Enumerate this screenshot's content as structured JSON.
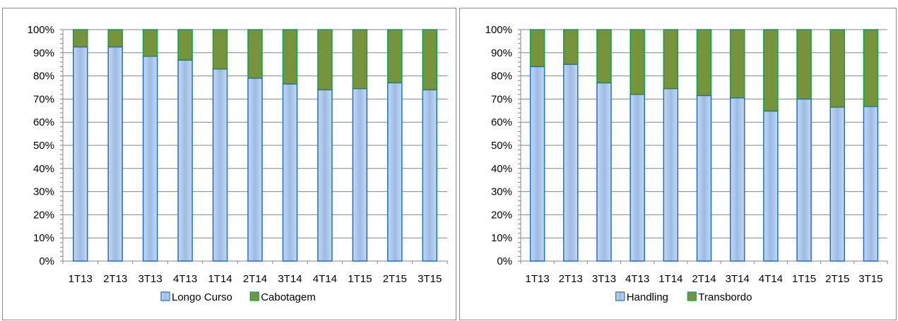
{
  "chart_data": [
    {
      "type": "bar",
      "stacked": true,
      "percent": true,
      "categories": [
        "1T13",
        "2T13",
        "3T13",
        "4T13",
        "1T14",
        "2T14",
        "3T14",
        "4T14",
        "1T15",
        "2T15",
        "3T15"
      ],
      "series": [
        {
          "name": "Longo Curso",
          "values": [
            92.5,
            92.5,
            88.5,
            86.8,
            83.0,
            79.0,
            76.5,
            74.0,
            74.5,
            77.0,
            74.0
          ]
        },
        {
          "name": "Cabotagem",
          "values": [
            7.5,
            7.5,
            11.5,
            13.2,
            17.0,
            21.0,
            23.5,
            26.0,
            25.5,
            23.0,
            26.0
          ]
        }
      ],
      "ylim": [
        0,
        100
      ],
      "yticks": [
        "0%",
        "10%",
        "20%",
        "30%",
        "40%",
        "50%",
        "60%",
        "70%",
        "80%",
        "90%",
        "100%"
      ],
      "grid": true,
      "legend": "bottom",
      "colors": {
        "Longo Curso": "#c6d9f1",
        "Cabotagem": "#77933c"
      }
    },
    {
      "type": "bar",
      "stacked": true,
      "percent": true,
      "categories": [
        "1T13",
        "2T13",
        "3T13",
        "4T13",
        "1T14",
        "2T14",
        "3T14",
        "4T14",
        "1T15",
        "2T15",
        "3T15"
      ],
      "series": [
        {
          "name": "Handling",
          "values": [
            84.0,
            85.0,
            77.0,
            72.0,
            74.5,
            71.5,
            70.5,
            64.8,
            70.0,
            66.5,
            66.8
          ]
        },
        {
          "name": "Transbordo",
          "values": [
            16.0,
            15.0,
            23.0,
            28.0,
            25.5,
            28.5,
            29.5,
            35.2,
            30.0,
            33.5,
            33.2
          ]
        }
      ],
      "ylim": [
        0,
        100
      ],
      "yticks": [
        "0%",
        "10%",
        "20%",
        "30%",
        "40%",
        "50%",
        "60%",
        "70%",
        "80%",
        "90%",
        "100%"
      ],
      "grid": true,
      "legend": "bottom",
      "colors": {
        "Handling": "#c6d9f1",
        "Transbordo": "#77933c"
      }
    }
  ]
}
